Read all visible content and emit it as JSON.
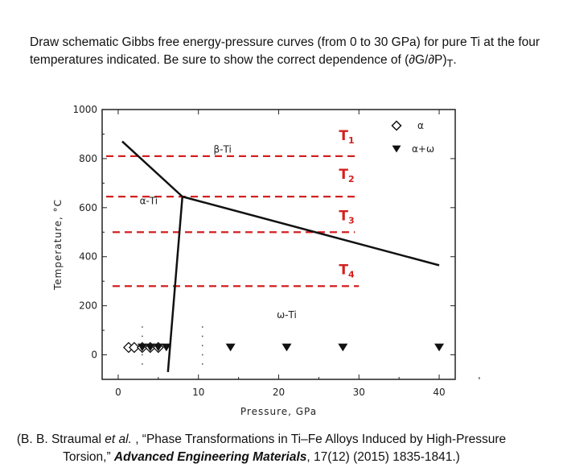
{
  "question": "Draw schematic Gibbs free energy-pressure curves (from 0 to 30 GPa) for pure Ti at the four temperatures indicated. Be sure to show the correct dependence of (∂G/∂P)",
  "question_subscript": "T",
  "question_end": ".",
  "citation": {
    "authors": "(B. B. Straumal ",
    "etal": "et al.",
    "title": " , “Phase Transformations in Ti–Fe Alloys Induced by High-Pressure Torsion,” ",
    "journal": "Advanced Engineering Materials",
    "details": ", 17(12) (2015) 1835-1841.)"
  },
  "chart_data": {
    "type": "scatter",
    "xlabel": "Pressure, GPa",
    "ylabel": "Temperature, °C",
    "xlim": [
      -2,
      42
    ],
    "ylim": [
      -100,
      1000
    ],
    "xticks": [
      0,
      10,
      20,
      30,
      40
    ],
    "yticks": [
      0,
      200,
      400,
      600,
      800,
      1000
    ],
    "grid": false,
    "legend_position": "top-right",
    "legend": [
      {
        "label": "α",
        "marker": "open-diamond"
      },
      {
        "label": "α+ω",
        "marker": "filled-triangle-down"
      }
    ],
    "series": [
      {
        "name": "α",
        "marker": "open-diamond",
        "x": [
          1.3,
          2,
          3,
          4,
          5
        ],
        "y": [
          30,
          30,
          30,
          30,
          30
        ]
      },
      {
        "name": "α+ω",
        "marker": "filled-triangle-down",
        "x": [
          3,
          4,
          5,
          6,
          14,
          21,
          28,
          40
        ],
        "y": [
          30,
          30,
          30,
          30,
          30,
          30,
          30,
          30
        ]
      }
    ],
    "phase_boundaries": [
      {
        "points": [
          [
            0.5,
            870
          ],
          [
            8,
            645
          ]
        ]
      },
      {
        "points": [
          [
            8,
            645
          ],
          [
            6.2,
            -70
          ]
        ]
      },
      {
        "points": [
          [
            8,
            645
          ],
          [
            40,
            365
          ]
        ]
      }
    ],
    "dotted_lines": [
      {
        "x": 3,
        "y": [
          -40,
          130
        ]
      },
      {
        "x": 10.5,
        "y": [
          -40,
          130
        ]
      }
    ],
    "temperature_lines": [
      {
        "label": "T",
        "sub": "1",
        "y": 810,
        "x": [
          -1.5,
          30
        ]
      },
      {
        "label": "T",
        "sub": "2",
        "y": 645,
        "x": [
          -1.5,
          30
        ]
      },
      {
        "label": "T",
        "sub": "3",
        "y": 500,
        "x": [
          -0.7,
          29.5
        ]
      },
      {
        "label": "T",
        "sub": "4",
        "y": 280,
        "x": [
          -0.7,
          30
        ]
      }
    ],
    "region_labels": [
      {
        "text": "β-Ti",
        "x": 13,
        "y": 825
      },
      {
        "text": "α-Ti",
        "x": 3.8,
        "y": 615
      },
      {
        "text": "ω-Ti",
        "x": 21,
        "y": 150
      }
    ],
    "colors": {
      "temperature_lines": "#d42020",
      "boundaries": "#111111"
    }
  }
}
